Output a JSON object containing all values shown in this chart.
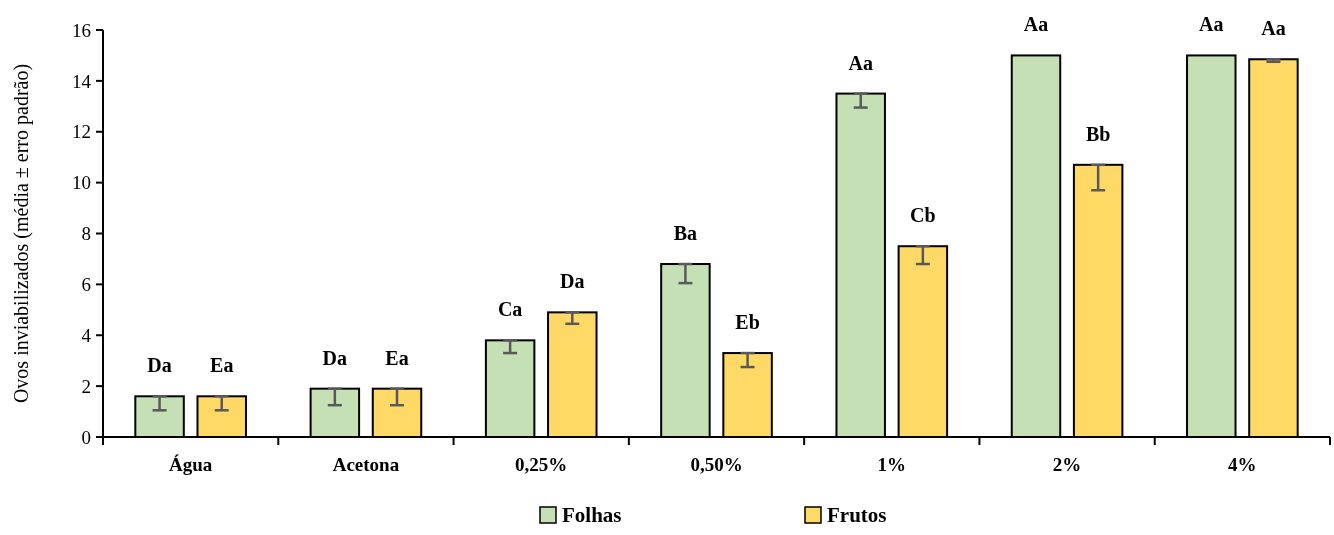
{
  "chart_data": {
    "type": "bar",
    "ylabel": "Ovos inviabilizados (média ± erro padrão)",
    "categories": [
      "Água",
      "Acetona",
      "0,25%",
      "0,50%",
      "1%",
      "2%",
      "4%"
    ],
    "series": [
      {
        "name": "Folhas",
        "color": "#c5e0b4",
        "values": [
          1.6,
          1.9,
          3.8,
          6.8,
          13.5,
          15.0,
          15.0
        ],
        "errors": [
          [
            1.05,
            1.6
          ],
          [
            1.25,
            1.9
          ],
          [
            3.3,
            3.8
          ],
          [
            6.05,
            6.8
          ],
          [
            12.95,
            13.5
          ],
          null,
          null
        ],
        "value_labels": [
          "Da",
          "Da",
          "Ca",
          "Ba",
          "Aa",
          "Aa",
          "Aa"
        ]
      },
      {
        "name": "Frutos",
        "color": "#ffd966",
        "values": [
          1.6,
          1.9,
          4.9,
          3.3,
          7.5,
          10.7,
          14.85
        ],
        "errors": [
          [
            1.05,
            1.6
          ],
          [
            1.25,
            1.9
          ],
          [
            4.45,
            4.9
          ],
          [
            2.75,
            3.3
          ],
          [
            6.8,
            7.5
          ],
          [
            9.7,
            10.7
          ],
          [
            14.75,
            14.85
          ]
        ],
        "value_labels": [
          "Ea",
          "Ea",
          "Da",
          "Eb",
          "Cb",
          "Bb",
          "Aa"
        ]
      }
    ],
    "ylim": [
      0,
      16
    ],
    "yticks": [
      0,
      2,
      4,
      6,
      8,
      10,
      12,
      14,
      16
    ],
    "grid": false,
    "legend": "bottom"
  }
}
